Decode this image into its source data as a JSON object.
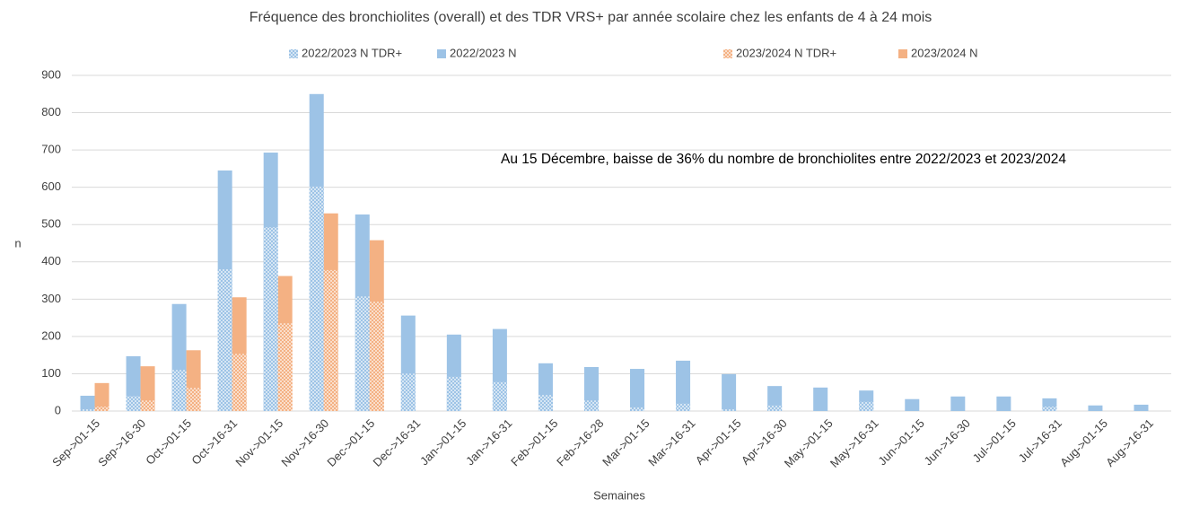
{
  "chart_data": {
    "type": "bar",
    "title": "Fréquence des bronchiolites (overall) et des TDR VRS+ par année scolaire chez les enfants de 4 à 24 mois",
    "annotation": "Au 15 Décembre, baisse de 36% du nombre de bronchiolites entre 2022/2023 et 2023/2024",
    "x_label": "Semaines",
    "y_label": "n",
    "categories": [
      "Sep->01-15",
      "Sep->16-30",
      "Oct->01-15",
      "Oct->16-31",
      "Nov->01-15",
      "Nov->16-30",
      "Dec->01-15",
      "Dec->16-31",
      "Jan->01-15",
      "Jan->16-31",
      "Feb->01-15",
      "Feb->16-28",
      "Mar->01-15",
      "Mar->16-31",
      "Apr->01-15",
      "Apr->16-30",
      "May->01-15",
      "May->16-31",
      "Jun->01-15",
      "Jun->16-30",
      "Jul->01-15",
      "Jul->16-31",
      "Aug->01-15",
      "Aug->16-31"
    ],
    "series": [
      {
        "name": "2022/2023 N TDR+",
        "color": "#9dc3e6",
        "pattern": true,
        "group": 0,
        "values": [
          5,
          40,
          110,
          380,
          493,
          602,
          307,
          100,
          92,
          78,
          43,
          28,
          10,
          20,
          5,
          15,
          0,
          25,
          0,
          0,
          0,
          12,
          0,
          0
        ]
      },
      {
        "name": "2022/2023 N",
        "color": "#9dc3e6",
        "pattern": false,
        "group": 0,
        "values": [
          41,
          147,
          287,
          645,
          693,
          850,
          527,
          256,
          205,
          220,
          128,
          118,
          113,
          135,
          99,
          67,
          63,
          55,
          32,
          39,
          39,
          34,
          15,
          17
        ]
      },
      {
        "name": "2023/2024 N TDR+",
        "color": "#f4b183",
        "pattern": true,
        "group": 1,
        "values": [
          12,
          28,
          62,
          153,
          235,
          378,
          293,
          null,
          null,
          null,
          null,
          null,
          null,
          null,
          null,
          null,
          null,
          null,
          null,
          null,
          null,
          null,
          null,
          null
        ]
      },
      {
        "name": "2023/2024 N",
        "color": "#f4b183",
        "pattern": false,
        "group": 1,
        "values": [
          75,
          120,
          163,
          305,
          362,
          530,
          458,
          null,
          null,
          null,
          null,
          null,
          null,
          null,
          null,
          null,
          null,
          null,
          null,
          null,
          null,
          null,
          null,
          null
        ]
      }
    ],
    "ylim": [
      0,
      900
    ],
    "yticks": [
      0,
      100,
      200,
      300,
      400,
      500,
      600,
      700,
      800,
      900
    ],
    "grid": true
  }
}
